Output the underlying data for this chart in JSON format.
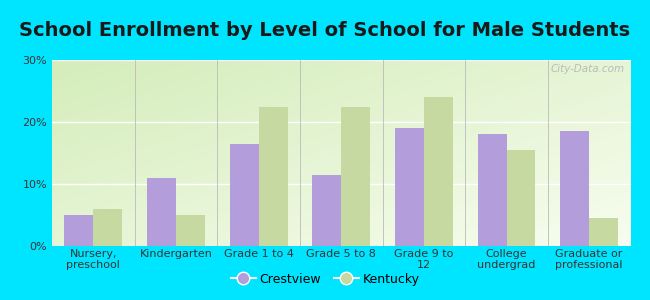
{
  "title": "School Enrollment by Level of School for Male Students",
  "categories": [
    "Nursery,\npreschool",
    "Kindergarten",
    "Grade 1 to 4",
    "Grade 5 to 8",
    "Grade 9 to\n12",
    "College\nundergrad",
    "Graduate or\nprofessional"
  ],
  "crestview": [
    5,
    11,
    16.5,
    11.5,
    19,
    18,
    18.5
  ],
  "kentucky": [
    6,
    5,
    22.5,
    22.5,
    24,
    15.5,
    4.5
  ],
  "crestview_color": "#b39ddb",
  "kentucky_color": "#c5d9a0",
  "background_color": "#00e5ff",
  "yticks": [
    0,
    10,
    20,
    30
  ],
  "ylim": [
    0,
    30
  ],
  "bar_width": 0.35,
  "title_fontsize": 14,
  "tick_fontsize": 8,
  "legend_fontsize": 9,
  "watermark_text": "City-Data.com"
}
